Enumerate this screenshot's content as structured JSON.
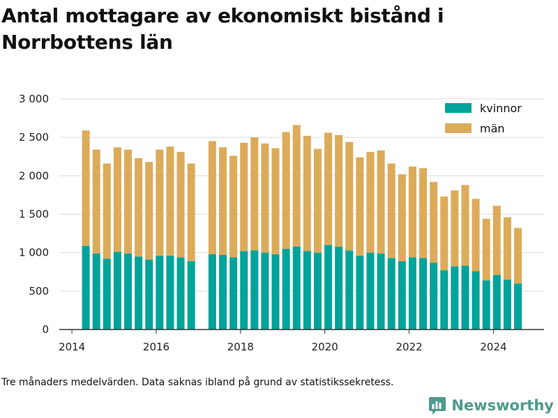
{
  "title": "Antal mottagare av ekonomiskt bistånd i Norrbottens län",
  "footnote": "Tre månaders medelvärden. Data saknas ibland på grund av statistikssekretess.",
  "brand": {
    "name": "Newsworthy",
    "color": "#4e9a8c"
  },
  "chart_data": {
    "type": "bar",
    "stacked": true,
    "title": "Antal mottagare av ekonomiskt bistånd i Norrbottens län",
    "xlabel": "",
    "ylabel": "",
    "ylim": [
      0,
      3000
    ],
    "y_ticks": [
      0,
      500,
      1000,
      1500,
      2000,
      2500,
      3000
    ],
    "y_tick_labels": [
      "0",
      "500",
      "1 000",
      "1 500",
      "2 000",
      "2 500",
      "3 000"
    ],
    "xlim": [
      2013.7,
      2025.2
    ],
    "x_ticks": [
      2014,
      2016,
      2018,
      2020,
      2022,
      2024
    ],
    "x_tick_labels": [
      "2014",
      "2016",
      "2018",
      "2020",
      "2022",
      "2024"
    ],
    "grid": "horizontal",
    "legend_position": "top-right",
    "x": [
      2014.33,
      2014.58,
      2014.83,
      2015.08,
      2015.33,
      2015.58,
      2015.83,
      2016.08,
      2016.33,
      2016.58,
      2016.83,
      2017.33,
      2017.58,
      2017.83,
      2018.08,
      2018.33,
      2018.58,
      2018.83,
      2019.08,
      2019.33,
      2019.58,
      2019.83,
      2020.08,
      2020.33,
      2020.58,
      2020.83,
      2021.08,
      2021.33,
      2021.58,
      2021.83,
      2022.08,
      2022.33,
      2022.58,
      2022.83,
      2023.08,
      2023.33,
      2023.58,
      2023.83,
      2024.08,
      2024.33,
      2024.58
    ],
    "series": [
      {
        "name": "kvinnor",
        "color": "#00a39a",
        "values": [
          1090,
          990,
          920,
          1010,
          990,
          950,
          910,
          960,
          960,
          940,
          890,
          980,
          970,
          940,
          1020,
          1030,
          1000,
          980,
          1050,
          1080,
          1020,
          1000,
          1100,
          1080,
          1030,
          960,
          1000,
          990,
          930,
          890,
          940,
          930,
          870,
          770,
          820,
          830,
          760,
          640,
          710,
          650,
          600
        ]
      },
      {
        "name": "män",
        "color": "#dcab5a",
        "values": [
          1500,
          1350,
          1240,
          1360,
          1350,
          1280,
          1270,
          1380,
          1420,
          1370,
          1270,
          1470,
          1400,
          1320,
          1410,
          1470,
          1420,
          1380,
          1520,
          1580,
          1500,
          1350,
          1460,
          1450,
          1410,
          1280,
          1310,
          1340,
          1230,
          1130,
          1180,
          1170,
          1050,
          960,
          990,
          1050,
          940,
          800,
          900,
          810,
          720
        ]
      }
    ]
  }
}
